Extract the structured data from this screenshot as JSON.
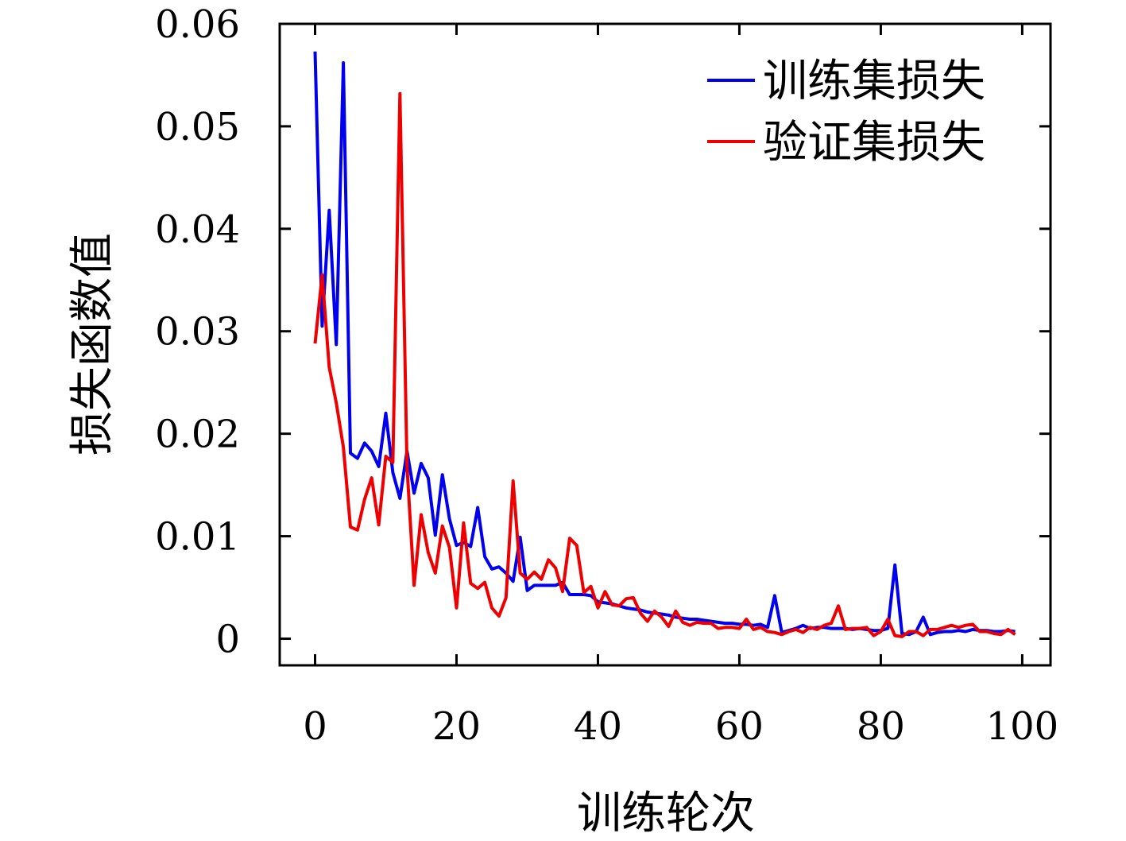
{
  "chart_data": {
    "type": "line",
    "xlabel": "训练轮次",
    "ylabel": "损失函数值",
    "xlim": [
      -5,
      104
    ],
    "ylim": [
      -0.0026,
      0.06
    ],
    "xticks": [
      0,
      20,
      40,
      60,
      80,
      100
    ],
    "xtick_labels": [
      "0",
      "20",
      "40",
      "60",
      "80",
      "100"
    ],
    "yticks": [
      0,
      0.01,
      0.02,
      0.03,
      0.04,
      0.05,
      0.06
    ],
    "ytick_labels": [
      "0",
      "0.01",
      "0.02",
      "0.03",
      "0.04",
      "0.05",
      "0.06"
    ],
    "legend_position": "top-right",
    "grid": false,
    "x": [
      0,
      1,
      2,
      3,
      4,
      5,
      6,
      7,
      8,
      9,
      10,
      11,
      12,
      13,
      14,
      15,
      16,
      17,
      18,
      19,
      20,
      21,
      22,
      23,
      24,
      25,
      26,
      27,
      28,
      29,
      30,
      31,
      32,
      33,
      34,
      35,
      36,
      37,
      38,
      39,
      40,
      41,
      42,
      43,
      44,
      45,
      46,
      47,
      48,
      49,
      50,
      51,
      52,
      53,
      54,
      55,
      56,
      57,
      58,
      59,
      60,
      61,
      62,
      63,
      64,
      65,
      66,
      67,
      68,
      69,
      70,
      71,
      72,
      73,
      74,
      75,
      76,
      77,
      78,
      79,
      80,
      81,
      82,
      83,
      84,
      85,
      86,
      87,
      88,
      89,
      90,
      91,
      92,
      93,
      94,
      95,
      96,
      97,
      98,
      99
    ],
    "series": [
      {
        "name": "训练集损失",
        "color": "#0000ee",
        "values": [
          0.0573,
          0.0305,
          0.0418,
          0.0287,
          0.0562,
          0.0181,
          0.0176,
          0.0191,
          0.0183,
          0.0168,
          0.022,
          0.0162,
          0.0137,
          0.0183,
          0.0142,
          0.0171,
          0.0157,
          0.0101,
          0.016,
          0.0117,
          0.0091,
          0.0094,
          0.009,
          0.0128,
          0.008,
          0.0068,
          0.007,
          0.0064,
          0.0056,
          0.0099,
          0.0047,
          0.0052,
          0.0052,
          0.0052,
          0.0052,
          0.0055,
          0.0043,
          0.0043,
          0.0043,
          0.0042,
          0.0036,
          0.0035,
          0.0034,
          0.0032,
          0.003,
          0.0029,
          0.0028,
          0.0026,
          0.0025,
          0.0024,
          0.0023,
          0.0021,
          0.002,
          0.0019,
          0.0019,
          0.0018,
          0.0017,
          0.0016,
          0.0015,
          0.0015,
          0.0014,
          0.0014,
          0.0013,
          0.0014,
          0.0011,
          0.0042,
          0.0006,
          0.0008,
          0.001,
          0.0013,
          0.001,
          0.0011,
          0.0011,
          0.001,
          0.001,
          0.001,
          0.0009,
          0.001,
          0.0009,
          0.0008,
          0.0008,
          0.001,
          0.0072,
          0.0005,
          0.0004,
          0.0007,
          0.0021,
          0.0004,
          0.0006,
          0.0007,
          0.0007,
          0.0008,
          0.0007,
          0.0009,
          0.0008,
          0.0008,
          0.0007,
          0.0007,
          0.0008,
          0.0007
        ]
      },
      {
        "name": "验证集损失",
        "color": "#ee0000",
        "values": [
          0.0288,
          0.0355,
          0.0265,
          0.023,
          0.0187,
          0.0109,
          0.0106,
          0.0136,
          0.0157,
          0.0111,
          0.0178,
          0.0172,
          0.0532,
          0.0168,
          0.0052,
          0.0121,
          0.0084,
          0.0064,
          0.011,
          0.0089,
          0.003,
          0.0113,
          0.0054,
          0.0049,
          0.0055,
          0.003,
          0.0022,
          0.004,
          0.0154,
          0.0064,
          0.0058,
          0.0065,
          0.0058,
          0.0077,
          0.0069,
          0.0046,
          0.0098,
          0.0091,
          0.0045,
          0.0051,
          0.003,
          0.0046,
          0.0033,
          0.0032,
          0.0039,
          0.004,
          0.0025,
          0.0017,
          0.0027,
          0.0021,
          0.0012,
          0.0027,
          0.0016,
          0.0013,
          0.0016,
          0.0015,
          0.0015,
          0.001,
          0.0011,
          0.0011,
          0.001,
          0.0019,
          0.0009,
          0.0011,
          0.0007,
          0.0006,
          0.0004,
          0.0007,
          0.0009,
          0.0006,
          0.0011,
          0.0009,
          0.0013,
          0.0015,
          0.0032,
          0.0009,
          0.001,
          0.001,
          0.0011,
          0.0003,
          0.0007,
          0.0019,
          0.0003,
          0.0002,
          0.0007,
          0.0007,
          0.0003,
          0.0009,
          0.0009,
          0.0011,
          0.0013,
          0.0011,
          0.0013,
          0.0014,
          0.0007,
          0.0007,
          0.0005,
          0.0004,
          0.0009,
          0.0004
        ]
      }
    ]
  }
}
